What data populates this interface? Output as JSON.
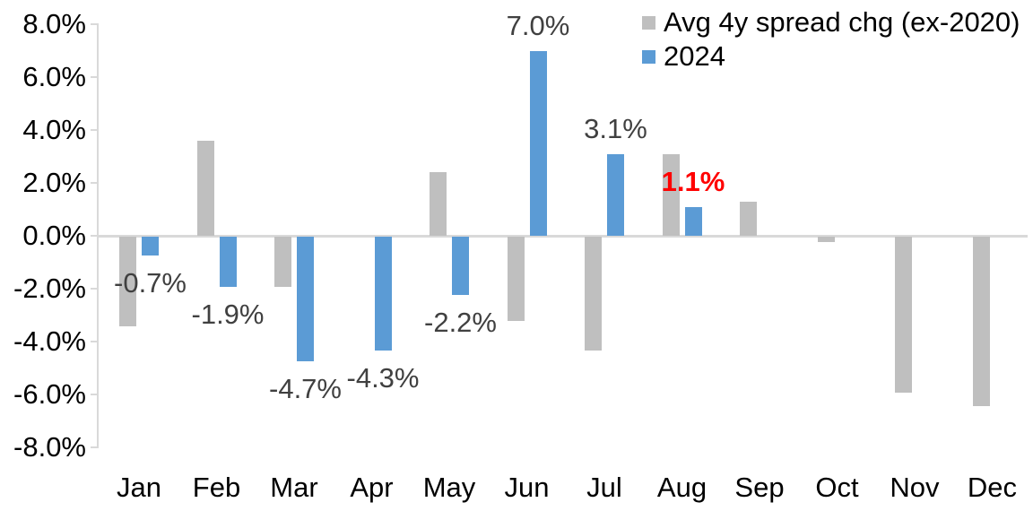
{
  "chart_data": {
    "type": "bar",
    "title": "",
    "categories": [
      "Jan",
      "Feb",
      "Mar",
      "Apr",
      "May",
      "Jun",
      "Jul",
      "Aug",
      "Sep",
      "Oct",
      "Nov",
      "Dec"
    ],
    "series": [
      {
        "name": "Avg 4y spread chg (ex-2020)",
        "color": "#BFBFBF",
        "values": [
          -3.4,
          3.6,
          -1.9,
          0.0,
          2.4,
          -3.2,
          -4.3,
          3.1,
          1.3,
          -0.2,
          -5.9,
          -6.4
        ]
      },
      {
        "name": "2024",
        "color": "#5B9BD5",
        "values": [
          -0.7,
          -1.9,
          -4.7,
          -4.3,
          -2.2,
          7.0,
          3.1,
          1.1,
          null,
          null,
          null,
          null
        ]
      }
    ],
    "data_labels": [
      {
        "category": "Jan",
        "series": "2024",
        "text": "-0.7%",
        "value": -0.7,
        "color": "#404040",
        "bold": false
      },
      {
        "category": "Feb",
        "series": "2024",
        "text": "-1.9%",
        "value": -1.9,
        "color": "#404040",
        "bold": false
      },
      {
        "category": "Mar",
        "series": "2024",
        "text": "-4.7%",
        "value": -4.7,
        "color": "#404040",
        "bold": false
      },
      {
        "category": "Apr",
        "series": "2024",
        "text": "-4.3%",
        "value": -4.3,
        "color": "#404040",
        "bold": false
      },
      {
        "category": "May",
        "series": "2024",
        "text": "-2.2%",
        "value": -2.2,
        "color": "#404040",
        "bold": false
      },
      {
        "category": "Jun",
        "series": "2024",
        "text": "7.0%",
        "value": 7.0,
        "color": "#404040",
        "bold": false
      },
      {
        "category": "Jul",
        "series": "2024",
        "text": "3.1%",
        "value": 3.1,
        "color": "#404040",
        "bold": false
      },
      {
        "category": "Aug",
        "series": "2024",
        "text": "1.1%",
        "value": 1.1,
        "color": "#FF0000",
        "bold": true
      }
    ],
    "y_axis": {
      "min": -8,
      "max": 8,
      "step": 2,
      "tick_labels": [
        "8.0%",
        "6.0%",
        "4.0%",
        "2.0%",
        "0.0%",
        "-2.0%",
        "-4.0%",
        "-6.0%",
        "-8.0%"
      ]
    },
    "x_axis": {
      "labels": [
        "Jan",
        "Feb",
        "Mar",
        "Apr",
        "May",
        "Jun",
        "Jul",
        "Aug",
        "Sep",
        "Oct",
        "Nov",
        "Dec"
      ]
    },
    "legend": {
      "position": "top-right",
      "entries": [
        "Avg 4y spread chg (ex-2020)",
        "2024"
      ]
    },
    "grid": false,
    "colors": {
      "axis_line": "#D9D9D9",
      "tick_label_text": "#000000",
      "data_label_default": "#404040",
      "data_label_highlight": "#FF0000"
    }
  }
}
